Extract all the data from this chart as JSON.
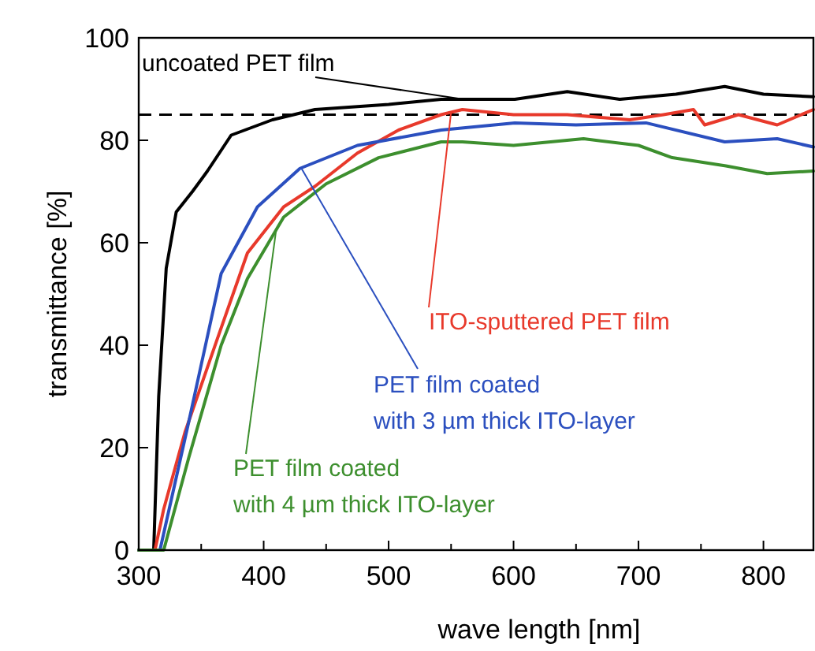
{
  "chart_data": {
    "type": "line",
    "xlabel": "wave length [nm]",
    "ylabel": "transmittance [%]",
    "xlim": [
      300,
      840
    ],
    "ylim": [
      0,
      100
    ],
    "xticks": [
      300,
      {
        "value": 350,
        "label": null
      },
      400,
      {
        "value": 450,
        "label": null
      },
      500,
      {
        "value": 550,
        "label": null
      },
      600,
      {
        "value": 650,
        "label": null
      },
      700,
      {
        "value": 750,
        "label": null
      },
      800
    ],
    "yticks": [
      0,
      20,
      40,
      60,
      80,
      100
    ],
    "ref_lines": [
      {
        "axis": "y",
        "value": 85,
        "color": "#000000",
        "line_style": "dashed"
      }
    ],
    "series": [
      {
        "name": "uncoated PET film",
        "color": "#000000",
        "x": [
          300,
          312,
          316,
          322,
          330,
          343,
          355,
          374,
          407,
          441,
          500,
          542,
          601,
          643,
          685,
          730,
          769,
          800,
          840
        ],
        "values": [
          0,
          0,
          30,
          55,
          66,
          70,
          74,
          81,
          84,
          86,
          87,
          88,
          88,
          89.5,
          88,
          89,
          90.5,
          89,
          88.5
        ]
      },
      {
        "name": "ITO-sputtered PET film",
        "color": "#e8392b",
        "x": [
          300,
          313,
          320,
          337,
          362,
          387,
          416,
          441,
          475,
          508,
          542,
          559,
          600,
          643,
          693,
          720,
          744,
          753,
          780,
          811,
          840
        ],
        "values": [
          0,
          0,
          8,
          23,
          40.6,
          58,
          67,
          71,
          77.5,
          82,
          85,
          86,
          85,
          85,
          84,
          85,
          86,
          83,
          85,
          83,
          86
        ]
      },
      {
        "name": "PET film coated\nwith 3 µm thick ITO-layer",
        "color": "#2b4fbf",
        "x": [
          300,
          317,
          340,
          366,
          395,
          429,
          475,
          542,
          601,
          650,
          706,
          769,
          811,
          840
        ],
        "values": [
          0,
          0,
          25,
          54,
          67,
          74.5,
          79,
          82,
          83.4,
          83,
          83.4,
          79.7,
          80.3,
          78.7
        ]
      },
      {
        "name": "PET film coated\nwith 4 µm thick ITO-layer",
        "color": "#3d8f2e",
        "x": [
          300,
          320,
          340,
          366,
          387,
          416,
          450,
          492,
          542,
          559,
          600,
          656,
          700,
          727,
          770,
          803,
          840
        ],
        "values": [
          0,
          0,
          18,
          40,
          53,
          65,
          71.5,
          76.6,
          79.7,
          79.7,
          79,
          80.3,
          79,
          76.6,
          75,
          73.5,
          74
        ]
      }
    ]
  }
}
